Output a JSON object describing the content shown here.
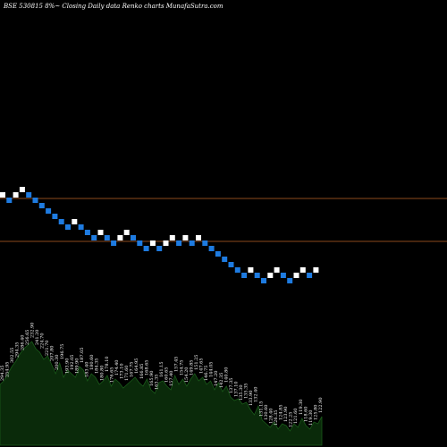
{
  "chart_data": {
    "type": "renko",
    "title": "BSE 530815 8%~   Closing Daily data  Renko  charts MunafaSutra.com",
    "colors": {
      "background": "#000000",
      "up_brick": "#ffffff",
      "down_brick": "#1e7be0",
      "reference_line": "#8b4a1c",
      "volume_fill": "#0a2a0a",
      "volume_stroke": "#1a5a1a"
    },
    "reference_lines": [
      {
        "y": 222
      },
      {
        "y": 270
      }
    ],
    "bricks": [
      {
        "col": 0,
        "row": 218,
        "dir": "up"
      },
      {
        "col": 1,
        "row": 224,
        "dir": "down"
      },
      {
        "col": 2,
        "row": 218,
        "dir": "up"
      },
      {
        "col": 3,
        "row": 212,
        "dir": "up"
      },
      {
        "col": 4,
        "row": 218,
        "dir": "down"
      },
      {
        "col": 5,
        "row": 224,
        "dir": "down"
      },
      {
        "col": 6,
        "row": 230,
        "dir": "down"
      },
      {
        "col": 7,
        "row": 236,
        "dir": "down"
      },
      {
        "col": 8,
        "row": 242,
        "dir": "down"
      },
      {
        "col": 9,
        "row": 248,
        "dir": "down"
      },
      {
        "col": 10,
        "row": 254,
        "dir": "down"
      },
      {
        "col": 11,
        "row": 248,
        "dir": "up"
      },
      {
        "col": 12,
        "row": 254,
        "dir": "down"
      },
      {
        "col": 13,
        "row": 260,
        "dir": "down"
      },
      {
        "col": 14,
        "row": 266,
        "dir": "down"
      },
      {
        "col": 15,
        "row": 260,
        "dir": "up"
      },
      {
        "col": 16,
        "row": 266,
        "dir": "down"
      },
      {
        "col": 17,
        "row": 272,
        "dir": "down"
      },
      {
        "col": 18,
        "row": 266,
        "dir": "up"
      },
      {
        "col": 19,
        "row": 260,
        "dir": "up"
      },
      {
        "col": 20,
        "row": 266,
        "dir": "down"
      },
      {
        "col": 21,
        "row": 272,
        "dir": "down"
      },
      {
        "col": 22,
        "row": 278,
        "dir": "down"
      },
      {
        "col": 23,
        "row": 272,
        "dir": "up"
      },
      {
        "col": 24,
        "row": 278,
        "dir": "down"
      },
      {
        "col": 25,
        "row": 272,
        "dir": "up"
      },
      {
        "col": 26,
        "row": 266,
        "dir": "up"
      },
      {
        "col": 27,
        "row": 272,
        "dir": "down"
      },
      {
        "col": 28,
        "row": 266,
        "dir": "up"
      },
      {
        "col": 29,
        "row": 272,
        "dir": "down"
      },
      {
        "col": 30,
        "row": 266,
        "dir": "up"
      },
      {
        "col": 31,
        "row": 272,
        "dir": "down"
      },
      {
        "col": 32,
        "row": 278,
        "dir": "down"
      },
      {
        "col": 33,
        "row": 284,
        "dir": "down"
      },
      {
        "col": 34,
        "row": 290,
        "dir": "down"
      },
      {
        "col": 35,
        "row": 296,
        "dir": "down"
      },
      {
        "col": 36,
        "row": 302,
        "dir": "down"
      },
      {
        "col": 37,
        "row": 308,
        "dir": "down"
      },
      {
        "col": 38,
        "row": 302,
        "dir": "up"
      },
      {
        "col": 39,
        "row": 308,
        "dir": "down"
      },
      {
        "col": 40,
        "row": 314,
        "dir": "down"
      },
      {
        "col": 41,
        "row": 308,
        "dir": "up"
      },
      {
        "col": 42,
        "row": 302,
        "dir": "up"
      },
      {
        "col": 43,
        "row": 308,
        "dir": "down"
      },
      {
        "col": 44,
        "row": 314,
        "dir": "down"
      },
      {
        "col": 45,
        "row": 308,
        "dir": "up"
      },
      {
        "col": 46,
        "row": 302,
        "dir": "up"
      },
      {
        "col": 47,
        "row": 308,
        "dir": "down"
      },
      {
        "col": 48,
        "row": 302,
        "dir": "up"
      }
    ],
    "volume_labels": [
      "294.35",
      "254.95",
      "302.55",
      "294.35",
      "286.40",
      "256.65",
      "232.90",
      "241.20",
      "224.70",
      "221.70",
      "207.80",
      "200.30",
      "196.75",
      "193.90",
      "192.05",
      "189.90",
      "187.05",
      "183.40",
      "180.60",
      "184.35",
      "180.80",
      "178.10",
      "176.65",
      "174.40",
      "173.10",
      "171.60",
      "167.75",
      "164.95",
      "166.85",
      "168.65",
      "165.90",
      "163.35",
      "161.15",
      "160.65",
      "157.40",
      "157.45",
      "154.75",
      "154.20",
      "149.85",
      "151.25",
      "147.65",
      "146.75",
      "144.05",
      "147.20",
      "142.35",
      "140.80",
      "137.35",
      "137.10",
      "135.30",
      "135.35",
      "133.90",
      "132.40",
      "131.15",
      "130.60",
      "128.40",
      "126.35",
      "124.85",
      "123.90",
      "122.25",
      "121.60",
      "119.30",
      "118.60",
      "119.30",
      "125.80",
      "122.90"
    ],
    "volume": [
      34,
      36,
      40,
      44,
      47,
      51,
      54,
      56,
      58,
      54,
      52,
      48,
      50,
      45,
      40,
      46,
      38,
      42,
      40,
      38,
      44,
      42,
      36,
      40,
      38,
      34,
      36,
      39,
      33,
      37,
      35,
      32,
      34,
      36,
      38,
      35,
      33,
      37,
      31,
      29,
      35,
      36,
      33,
      31,
      39,
      34,
      37,
      33,
      37,
      40,
      36,
      38,
      34,
      36,
      31,
      35,
      30,
      33,
      27,
      25,
      26,
      23,
      24,
      20,
      17,
      22,
      14,
      12,
      10,
      13,
      9,
      12,
      11,
      8,
      12,
      10,
      15,
      11,
      9,
      13,
      12,
      16
    ]
  }
}
